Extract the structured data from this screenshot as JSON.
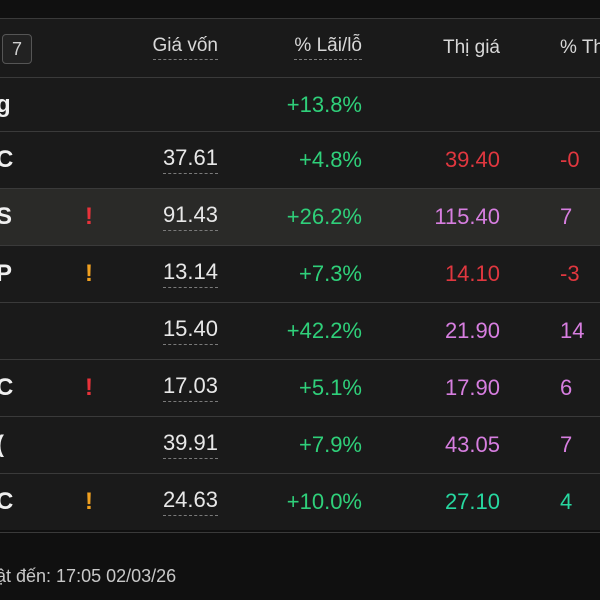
{
  "header": {
    "count": "7",
    "col_cost": "Giá vốn",
    "col_pl": "% Lãi/lỗ",
    "col_price": "Thị giá",
    "col_today": "% Th"
  },
  "total": {
    "ticker": "g",
    "pl": "+13.8%"
  },
  "rows": [
    {
      "ticker": "C",
      "warn": "",
      "cost": "37.61",
      "pl": "+4.8%",
      "price": "39.40",
      "today": "-0"
    },
    {
      "ticker": "S",
      "warn": "!",
      "cost": "91.43",
      "pl": "+26.2%",
      "price": "115.40",
      "today": "7"
    },
    {
      "ticker": "P",
      "warn": "!",
      "cost": "13.14",
      "pl": "+7.3%",
      "price": "14.10",
      "today": "-3"
    },
    {
      "ticker": "",
      "warn": "",
      "cost": "15.40",
      "pl": "+42.2%",
      "price": "21.90",
      "today": "14"
    },
    {
      "ticker": "C",
      "warn": "!",
      "cost": "17.03",
      "pl": "+5.1%",
      "price": "17.90",
      "today": "6"
    },
    {
      "ticker": "(",
      "warn": "",
      "cost": "39.91",
      "pl": "+7.9%",
      "price": "43.05",
      "today": "7"
    },
    {
      "ticker": "C",
      "warn": "!",
      "cost": "24.63",
      "pl": "+10.0%",
      "price": "27.10",
      "today": "4"
    }
  ],
  "footer": {
    "updated": "ật đến: 17:05 02/03/26"
  },
  "colors": {
    "green": "#2fd07a",
    "red": "#e0373f",
    "purple": "#d77ee0",
    "teal": "#27d8a0",
    "warn_red": "#e8323a",
    "warn_orange": "#f0a020"
  }
}
